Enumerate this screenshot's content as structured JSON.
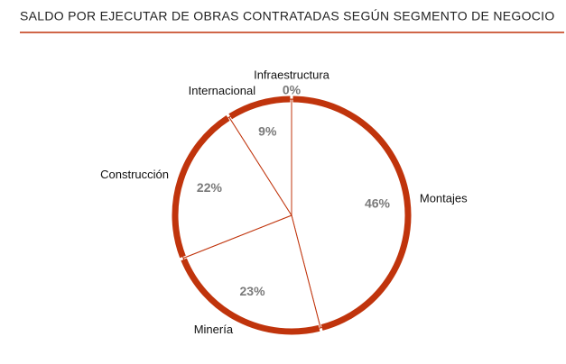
{
  "chart_data": {
    "type": "pie",
    "title": "SALDO POR EJECUTAR DE OBRAS CONTRATADAS SEGÚN SEGMENTO DE NEGOCIO",
    "categories": [
      "Montajes",
      "Minería",
      "Construcción",
      "Internacional",
      "Infraestructura"
    ],
    "values": [
      46,
      23,
      22,
      9,
      0
    ],
    "value_labels": [
      "46%",
      "23%",
      "22%",
      "9%",
      "0%"
    ],
    "color": "#c0340c"
  }
}
